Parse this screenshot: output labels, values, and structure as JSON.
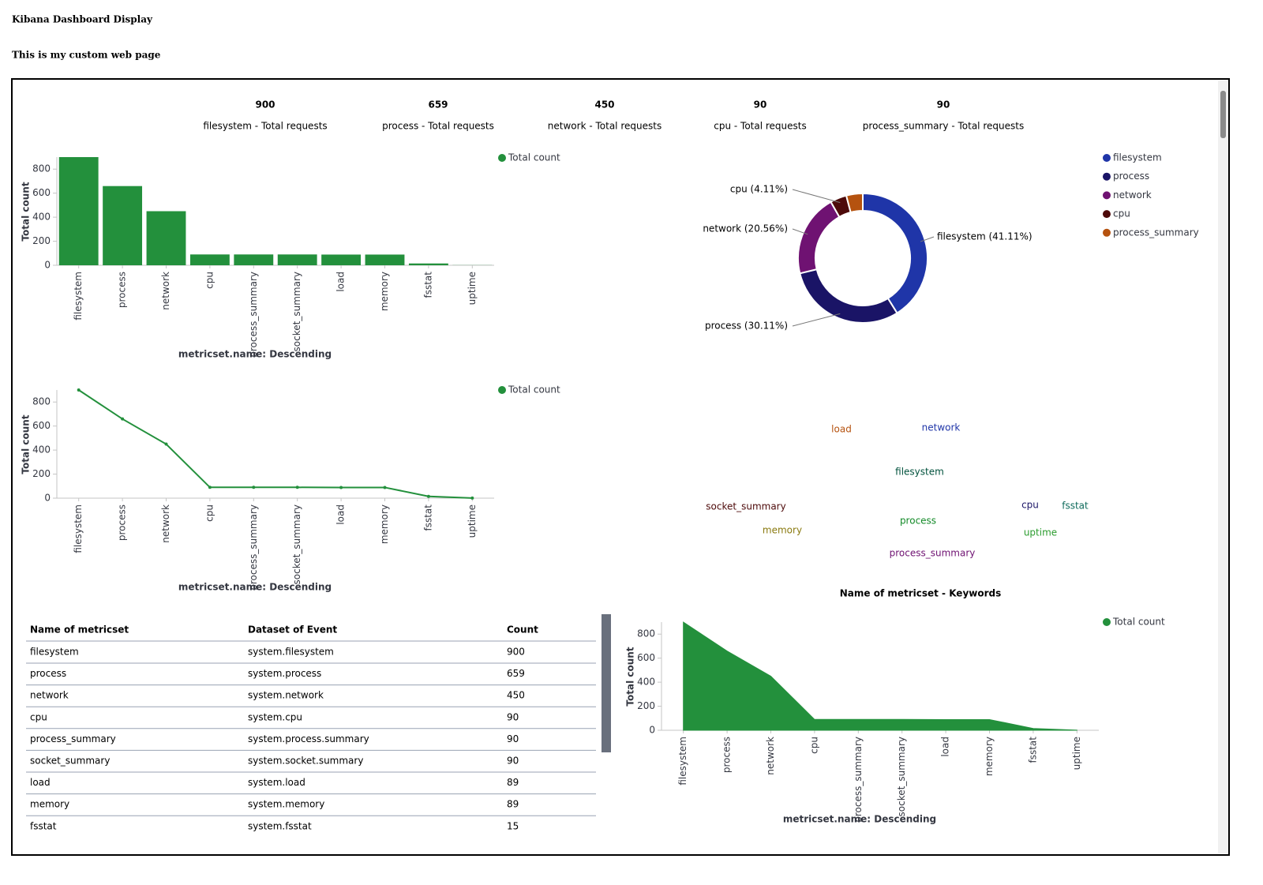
{
  "header": {
    "title": "Kibana Dashboard Display",
    "subtitle": "This is my custom web page"
  },
  "metrics": [
    {
      "value": 900,
      "label": "filesystem - Total requests"
    },
    {
      "value": 659,
      "label": "process - Total requests"
    },
    {
      "value": 450,
      "label": "network - Total requests"
    },
    {
      "value": 90,
      "label": "cpu - Total requests"
    },
    {
      "value": 90,
      "label": "process_summary - Total requests"
    }
  ],
  "chart_data": [
    {
      "type": "bar",
      "x_label": "metricset.name: Descending",
      "y_label": "Total count",
      "categories": [
        "filesystem",
        "process",
        "network",
        "cpu",
        "process_summary",
        "socket_summary",
        "load",
        "memory",
        "fsstat",
        "uptime"
      ],
      "series": [
        {
          "name": "Total count",
          "color": "#23903c",
          "values": [
            900,
            659,
            450,
            90,
            90,
            90,
            89,
            89,
            15,
            1
          ]
        }
      ],
      "ylim": [
        0,
        900
      ],
      "yticks": [
        0,
        200,
        400,
        600,
        800
      ]
    },
    {
      "type": "pie",
      "categories": [
        "filesystem",
        "process",
        "network",
        "cpu",
        "process_summary"
      ],
      "values": [
        41.11,
        30.11,
        20.56,
        4.11,
        4.11
      ],
      "value_labels": [
        "filesystem (41.11%)",
        "process (30.11%)",
        "network (20.56%)",
        "cpu (4.11%)",
        null
      ],
      "colors": [
        "#1f35a8",
        "#1a1466",
        "#6f1272",
        "#4d0a0a",
        "#b5520f"
      ]
    },
    {
      "type": "line",
      "x_label": "metricset.name: Descending",
      "y_label": "Total count",
      "categories": [
        "filesystem",
        "process",
        "network",
        "cpu",
        "process_summary",
        "socket_summary",
        "load",
        "memory",
        "fsstat",
        "uptime"
      ],
      "series": [
        {
          "name": "Total count",
          "color": "#23903c",
          "values": [
            900,
            659,
            450,
            90,
            90,
            90,
            89,
            89,
            15,
            1
          ]
        }
      ],
      "ylim": [
        0,
        900
      ],
      "yticks": [
        0,
        200,
        400,
        600,
        800
      ]
    },
    {
      "type": "area",
      "x_label": "metricset.name: Descending",
      "y_label": "Total count",
      "categories": [
        "filesystem",
        "process",
        "network",
        "cpu",
        "process_summary",
        "socket_summary",
        "load",
        "memory",
        "fsstat",
        "uptime"
      ],
      "series": [
        {
          "name": "Total count",
          "color": "#23903c",
          "values": [
            900,
            659,
            450,
            90,
            90,
            90,
            89,
            89,
            15,
            1
          ]
        }
      ],
      "ylim": [
        0,
        900
      ],
      "yticks": [
        0,
        200,
        400,
        600,
        800
      ]
    }
  ],
  "word_cloud": {
    "title": "Name of metricset - Keywords",
    "words": [
      {
        "text": "filesystem",
        "color": "#00513c"
      },
      {
        "text": "process",
        "color": "#138a28"
      },
      {
        "text": "network",
        "color": "#1f35a8"
      },
      {
        "text": "load",
        "color": "#b5520f"
      },
      {
        "text": "socket_summary",
        "color": "#4d0a0a"
      },
      {
        "text": "memory",
        "color": "#8a7a10"
      },
      {
        "text": "cpu",
        "color": "#1a1466"
      },
      {
        "text": "fsstat",
        "color": "#0f6b5c"
      },
      {
        "text": "uptime",
        "color": "#2b9c2e"
      },
      {
        "text": "process_summary",
        "color": "#6f1272"
      }
    ]
  },
  "table": {
    "columns": [
      "Name of metricset",
      "Dataset of Event",
      "Count"
    ],
    "rows": [
      [
        "filesystem",
        "system.filesystem",
        900
      ],
      [
        "process",
        "system.process",
        659
      ],
      [
        "network",
        "system.network",
        450
      ],
      [
        "cpu",
        "system.cpu",
        90
      ],
      [
        "process_summary",
        "system.process.summary",
        90
      ],
      [
        "socket_summary",
        "system.socket.summary",
        90
      ],
      [
        "load",
        "system.load",
        89
      ],
      [
        "memory",
        "system.memory",
        89
      ],
      [
        "fsstat",
        "system.fsstat",
        15
      ]
    ]
  }
}
